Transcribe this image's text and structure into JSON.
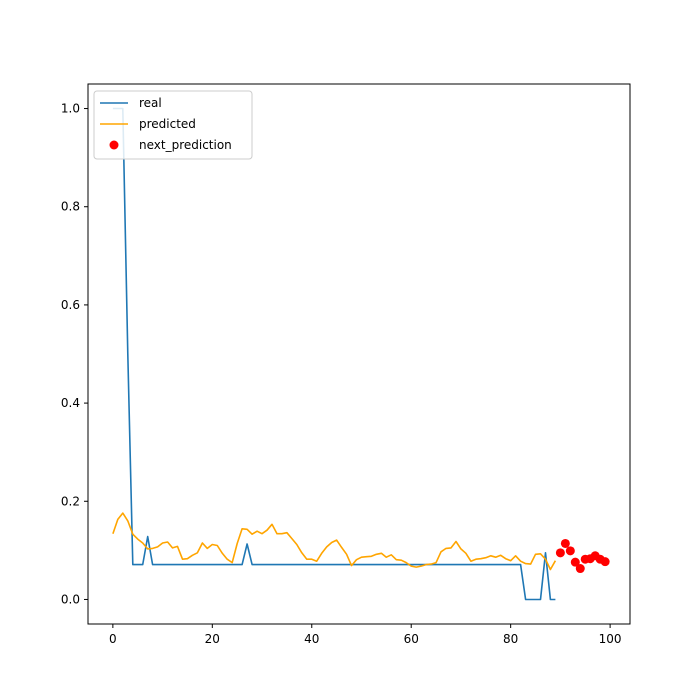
{
  "chart_data": {
    "type": "line",
    "title": "",
    "xlabel": "",
    "ylabel": "",
    "xlim": [
      -5,
      104
    ],
    "ylim": [
      -0.05,
      1.05
    ],
    "x_ticks": [
      0,
      20,
      40,
      60,
      80,
      100
    ],
    "y_ticks": [
      0.0,
      0.2,
      0.4,
      0.6,
      0.8,
      1.0
    ],
    "x_tick_labels": [
      "0",
      "20",
      "40",
      "60",
      "80",
      "100"
    ],
    "y_tick_labels": [
      "0.0",
      "0.2",
      "0.4",
      "0.6",
      "0.8",
      "1.0"
    ],
    "legend_position": "top-left",
    "series": [
      {
        "name": "real",
        "kind": "line",
        "color": "#1f77b4",
        "x": [
          0,
          1,
          2,
          3,
          4,
          5,
          6,
          7,
          8,
          9,
          10,
          11,
          12,
          13,
          14,
          15,
          16,
          17,
          18,
          19,
          20,
          21,
          22,
          23,
          24,
          25,
          26,
          27,
          28,
          29,
          30,
          31,
          32,
          33,
          34,
          35,
          36,
          37,
          38,
          39,
          40,
          41,
          42,
          43,
          44,
          45,
          46,
          47,
          48,
          49,
          50,
          51,
          52,
          53,
          54,
          55,
          56,
          57,
          58,
          59,
          60,
          61,
          62,
          63,
          64,
          65,
          66,
          67,
          68,
          69,
          70,
          71,
          72,
          73,
          74,
          75,
          76,
          77,
          78,
          79,
          80,
          81,
          82,
          83,
          84,
          85,
          86,
          87,
          88,
          89
        ],
        "y": [
          1.0,
          1.0,
          1.0,
          0.5,
          0.071,
          0.071,
          0.071,
          0.128,
          0.071,
          0.071,
          0.071,
          0.071,
          0.071,
          0.071,
          0.071,
          0.071,
          0.071,
          0.071,
          0.071,
          0.071,
          0.071,
          0.071,
          0.071,
          0.071,
          0.071,
          0.071,
          0.071,
          0.113,
          0.071,
          0.071,
          0.071,
          0.071,
          0.071,
          0.071,
          0.071,
          0.071,
          0.071,
          0.071,
          0.071,
          0.071,
          0.071,
          0.071,
          0.071,
          0.071,
          0.071,
          0.071,
          0.071,
          0.071,
          0.071,
          0.071,
          0.071,
          0.071,
          0.071,
          0.071,
          0.071,
          0.071,
          0.071,
          0.071,
          0.071,
          0.071,
          0.071,
          0.071,
          0.071,
          0.071,
          0.071,
          0.071,
          0.071,
          0.071,
          0.071,
          0.071,
          0.071,
          0.071,
          0.071,
          0.071,
          0.071,
          0.071,
          0.071,
          0.071,
          0.071,
          0.071,
          0.071,
          0.071,
          0.071,
          0.0,
          0.0,
          0.0,
          0.0,
          0.095,
          0.0,
          0.0
        ]
      },
      {
        "name": "predicted",
        "kind": "line",
        "color": "#ffa500",
        "x": [
          0,
          1,
          2,
          3,
          4,
          5,
          6,
          7,
          8,
          9,
          10,
          11,
          12,
          13,
          14,
          15,
          16,
          17,
          18,
          19,
          20,
          21,
          22,
          23,
          24,
          25,
          26,
          27,
          28,
          29,
          30,
          31,
          32,
          33,
          34,
          35,
          36,
          37,
          38,
          39,
          40,
          41,
          42,
          43,
          44,
          45,
          46,
          47,
          48,
          49,
          50,
          51,
          52,
          53,
          54,
          55,
          56,
          57,
          58,
          59,
          60,
          61,
          62,
          63,
          64,
          65,
          66,
          67,
          68,
          69,
          70,
          71,
          72,
          73,
          74,
          75,
          76,
          77,
          78,
          79,
          80,
          81,
          82,
          83,
          84,
          85,
          86,
          87,
          88,
          89
        ],
        "y": [
          0.134,
          0.163,
          0.176,
          0.16,
          0.133,
          0.123,
          0.115,
          0.103,
          0.104,
          0.107,
          0.115,
          0.117,
          0.105,
          0.108,
          0.082,
          0.083,
          0.09,
          0.095,
          0.115,
          0.104,
          0.112,
          0.11,
          0.094,
          0.082,
          0.075,
          0.114,
          0.144,
          0.143,
          0.133,
          0.139,
          0.134,
          0.141,
          0.153,
          0.134,
          0.134,
          0.136,
          0.124,
          0.112,
          0.095,
          0.082,
          0.082,
          0.078,
          0.094,
          0.107,
          0.116,
          0.121,
          0.106,
          0.092,
          0.069,
          0.081,
          0.086,
          0.087,
          0.088,
          0.092,
          0.094,
          0.086,
          0.091,
          0.081,
          0.08,
          0.075,
          0.068,
          0.066,
          0.068,
          0.071,
          0.072,
          0.075,
          0.097,
          0.104,
          0.105,
          0.118,
          0.103,
          0.094,
          0.078,
          0.082,
          0.083,
          0.085,
          0.089,
          0.086,
          0.09,
          0.083,
          0.079,
          0.089,
          0.078,
          0.073,
          0.072,
          0.092,
          0.093,
          0.082,
          0.061,
          0.079
        ]
      },
      {
        "name": "next_prediction",
        "kind": "scatter",
        "color": "#ff0000",
        "x": [
          90,
          91,
          92,
          93,
          94,
          95,
          96,
          97,
          98,
          99
        ],
        "y": [
          0.095,
          0.114,
          0.099,
          0.076,
          0.063,
          0.082,
          0.083,
          0.089,
          0.082,
          0.077
        ]
      }
    ]
  }
}
